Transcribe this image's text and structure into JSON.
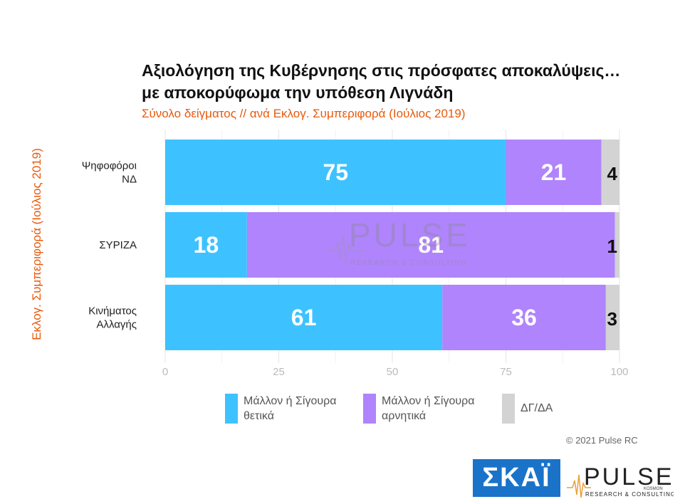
{
  "chart_data": {
    "type": "bar",
    "orientation": "horizontal",
    "stacked": true,
    "title": "Αξιολόγηση της Κυβέρνησης στις πρόσφατες αποκαλύψεις… με αποκορύφωμα την υπόθεση Λιγνάδη",
    "subtitle": "Σύνολο δείγματος // ανά Εκλογ. Συμπεριφορά (Ιούλιος 2019)",
    "ylabel": "Εκλογ. Συμπεριφορά (Ιούλιος 2019)",
    "categories": [
      "Ψηφοφόροι\nΝΔ",
      "ΣΥΡΙΖΑ",
      "Κινήματος\nΑλλαγής"
    ],
    "series": [
      {
        "name": "Μάλλον ή Σίγουρα\nθετικά",
        "values": [
          75,
          18,
          61
        ],
        "color": "#3ec2ff"
      },
      {
        "name": "Μάλλον ή Σίγουρα\nαρνητικά",
        "values": [
          21,
          81,
          36
        ],
        "color": "#b084fc"
      },
      {
        "name": "ΔΓ/ΔΑ",
        "values": [
          4,
          1,
          3
        ],
        "color": "#d3d3d3"
      }
    ],
    "xlim": [
      0,
      100
    ],
    "xticks": [
      0,
      25,
      50,
      75,
      100
    ],
    "grid": true,
    "legend": "bottom"
  },
  "footer": {
    "copyright": "© 2021 Pulse RC",
    "skai_logo": "ΣΚΑΪ",
    "pulse_logo": "PULSE",
    "pulse_tagline": "RESEARCH & CONSULTING",
    "pulse_sub": "KOSMON"
  },
  "watermark": {
    "text": "PULSE",
    "tagline": "RESEARCH & CONSULTING"
  }
}
